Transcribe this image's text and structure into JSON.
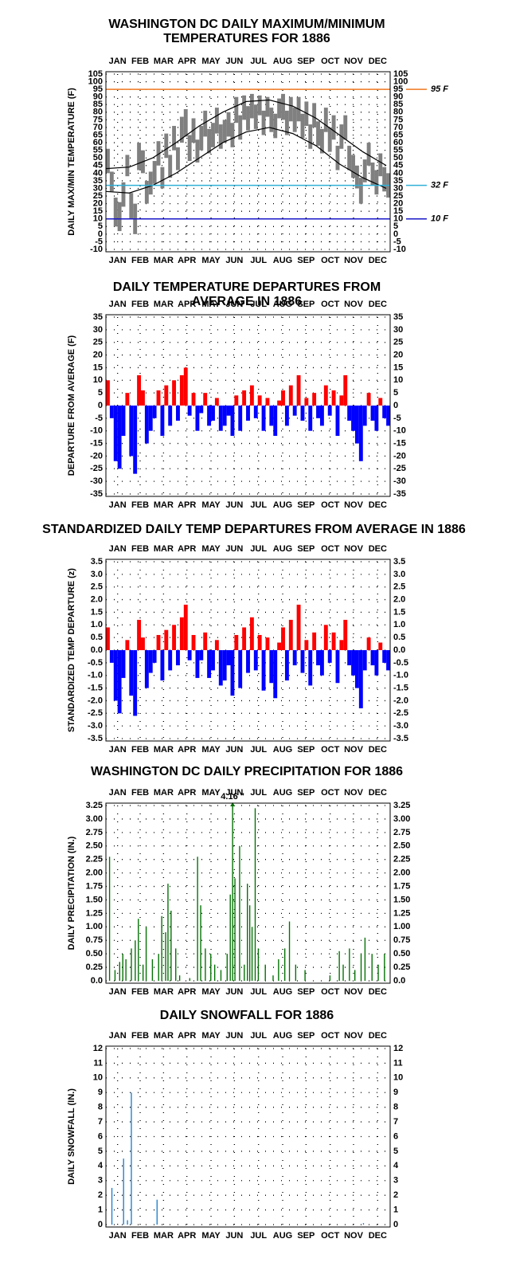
{
  "chart_data": [
    {
      "type": "range",
      "title": "WASHINGTON DC DAILY MAXIMUM/MINIMUM TEMPERATURES FOR 1886",
      "ylabel": "DAILY MAX/MIN TEMPERATURE (F)",
      "xlim": [
        1,
        366
      ],
      "xticks": [
        {
          "value": 16,
          "label": "JAN"
        },
        {
          "value": 45,
          "label": "FEB"
        },
        {
          "value": 75,
          "label": "MAR"
        },
        {
          "value": 105,
          "label": "APR"
        },
        {
          "value": 136,
          "label": "MAY"
        },
        {
          "value": 166,
          "label": "JUN"
        },
        {
          "value": 197,
          "label": "JUL"
        },
        {
          "value": 228,
          "label": "AUG"
        },
        {
          "value": 258,
          "label": "SEP"
        },
        {
          "value": 289,
          "label": "OCT"
        },
        {
          "value": 319,
          "label": "NOV"
        },
        {
          "value": 350,
          "label": "DEC"
        }
      ],
      "ylim": [
        -10,
        105
      ],
      "yticks": [
        105,
        100,
        95,
        90,
        85,
        80,
        75,
        70,
        65,
        60,
        55,
        50,
        45,
        40,
        35,
        30,
        25,
        20,
        15,
        10,
        5,
        0,
        -5,
        -10
      ],
      "grid": true,
      "x": [
        1,
        6,
        11,
        16,
        21,
        26,
        31,
        36,
        41,
        46,
        51,
        56,
        61,
        66,
        71,
        76,
        81,
        86,
        91,
        96,
        101,
        106,
        111,
        116,
        121,
        126,
        131,
        136,
        141,
        146,
        151,
        156,
        161,
        166,
        171,
        176,
        181,
        186,
        191,
        196,
        201,
        206,
        211,
        216,
        221,
        226,
        231,
        236,
        241,
        246,
        251,
        256,
        261,
        266,
        271,
        276,
        281,
        286,
        291,
        296,
        301,
        306,
        311,
        316,
        321,
        326,
        331,
        336,
        341,
        346,
        351,
        356,
        361
      ],
      "series": [
        {
          "color": "#808080",
          "values": [
            56,
            41,
            24,
            21,
            34,
            52,
            27,
            20,
            60,
            55,
            35,
            41,
            48,
            61,
            44,
            66,
            52,
            71,
            57,
            77,
            82,
            65,
            76,
            62,
            71,
            81,
            69,
            73,
            83,
            72,
            75,
            80,
            73,
            90,
            78,
            91,
            84,
            92,
            85,
            91,
            81,
            90,
            83,
            79,
            89,
            92,
            81,
            90,
            83,
            90,
            79,
            87,
            72,
            86,
            74,
            69,
            83,
            70,
            78,
            58,
            72,
            78,
            58,
            52,
            45,
            37,
            49,
            60,
            47,
            42,
            53,
            44,
            40
          ]
        },
        {
          "color": "#808080",
          "values": [
            40,
            28,
            5,
            2,
            18,
            38,
            10,
            0,
            42,
            40,
            20,
            26,
            33,
            45,
            30,
            50,
            37,
            55,
            42,
            60,
            64,
            48,
            60,
            47,
            55,
            64,
            53,
            57,
            66,
            56,
            60,
            64,
            57,
            73,
            62,
            75,
            68,
            76,
            69,
            78,
            65,
            77,
            67,
            63,
            76,
            75,
            65,
            74,
            67,
            74,
            63,
            71,
            56,
            70,
            58,
            53,
            67,
            54,
            62,
            42,
            56,
            62,
            42,
            37,
            30,
            20,
            34,
            45,
            32,
            26,
            38,
            28,
            24
          ]
        }
      ],
      "normal_x": [
        1,
        31,
        61,
        91,
        121,
        151,
        181,
        211,
        241,
        271,
        301,
        331,
        361
      ],
      "normals": [
        {
          "color": "#000000",
          "values": [
            43,
            44,
            50,
            60,
            71,
            80,
            87,
            88,
            84,
            76,
            65,
            54,
            45
          ]
        },
        {
          "color": "#000000",
          "values": [
            28,
            27,
            32,
            40,
            50,
            60,
            67,
            70,
            66,
            58,
            46,
            37,
            30
          ]
        }
      ],
      "reference_lines": [
        {
          "value": 95,
          "label": "95 F",
          "color": "#f07820"
        },
        {
          "value": 32,
          "label": "32 F",
          "color": "#30b0d8"
        },
        {
          "value": 10,
          "label": "10 F",
          "color": "#1818c8"
        }
      ]
    },
    {
      "type": "bar",
      "title": "DAILY TEMPERATURE DEPARTURES FROM AVERAGE IN 1886",
      "ylabel": "DEPARTURE FROM AVERAGE (F)",
      "xlim": [
        1,
        366
      ],
      "xticks": [
        {
          "value": 16,
          "label": "JAN"
        },
        {
          "value": 45,
          "label": "FEB"
        },
        {
          "value": 75,
          "label": "MAR"
        },
        {
          "value": 105,
          "label": "APR"
        },
        {
          "value": 136,
          "label": "MAY"
        },
        {
          "value": 166,
          "label": "JUN"
        },
        {
          "value": 197,
          "label": "JUL"
        },
        {
          "value": 228,
          "label": "AUG"
        },
        {
          "value": 258,
          "label": "SEP"
        },
        {
          "value": 289,
          "label": "OCT"
        },
        {
          "value": 319,
          "label": "NOV"
        },
        {
          "value": 350,
          "label": "DEC"
        }
      ],
      "ylim": [
        -35,
        35
      ],
      "yticks": [
        35,
        30,
        25,
        20,
        15,
        10,
        5,
        0,
        -5,
        -10,
        -15,
        -20,
        -25,
        -30,
        -35
      ],
      "grid": true,
      "bar_days": 5,
      "colors": {
        "positive": "#ff0000",
        "negative": "#0000ff"
      },
      "x": [
        1,
        6,
        11,
        16,
        21,
        26,
        31,
        36,
        41,
        46,
        51,
        56,
        61,
        66,
        71,
        76,
        81,
        86,
        91,
        96,
        101,
        106,
        111,
        116,
        121,
        126,
        131,
        136,
        141,
        146,
        151,
        156,
        161,
        166,
        171,
        176,
        181,
        186,
        191,
        196,
        201,
        206,
        211,
        216,
        221,
        226,
        231,
        236,
        241,
        246,
        251,
        256,
        261,
        266,
        271,
        276,
        281,
        286,
        291,
        296,
        301,
        306,
        311,
        316,
        321,
        326,
        331,
        336,
        341,
        346,
        351,
        356,
        361
      ],
      "series": [
        {
          "values": [
            10,
            -5,
            -22,
            -25,
            -12,
            5,
            -20,
            -27,
            12,
            6,
            -15,
            -10,
            -5,
            6,
            -12,
            8,
            -8,
            10,
            -6,
            12,
            15,
            -4,
            5,
            -10,
            -3,
            5,
            -8,
            -6,
            3,
            -10,
            -8,
            -4,
            -12,
            4,
            -10,
            6,
            -6,
            8,
            -5,
            4,
            -10,
            3,
            -8,
            -12,
            2,
            6,
            -8,
            8,
            -4,
            12,
            -6,
            3,
            -10,
            5,
            -5,
            -8,
            8,
            -4,
            6,
            -12,
            4,
            12,
            -6,
            -10,
            -15,
            -22,
            -8,
            5,
            -6,
            -10,
            3,
            -5,
            -8
          ]
        }
      ]
    },
    {
      "type": "bar",
      "title": "STANDARDIZED DAILY TEMP DEPARTURES FROM AVERAGE IN 1886",
      "ylabel": "STANDARDIZED TEMP DEPARTURE (z)",
      "xlim": [
        1,
        366
      ],
      "xticks": [
        {
          "value": 16,
          "label": "JAN"
        },
        {
          "value": 45,
          "label": "FEB"
        },
        {
          "value": 75,
          "label": "MAR"
        },
        {
          "value": 105,
          "label": "APR"
        },
        {
          "value": 136,
          "label": "MAY"
        },
        {
          "value": 166,
          "label": "JUN"
        },
        {
          "value": 197,
          "label": "JUL"
        },
        {
          "value": 228,
          "label": "AUG"
        },
        {
          "value": 258,
          "label": "SEP"
        },
        {
          "value": 289,
          "label": "OCT"
        },
        {
          "value": 319,
          "label": "NOV"
        },
        {
          "value": 350,
          "label": "DEC"
        }
      ],
      "ylim": [
        -3.5,
        3.5
      ],
      "yticks": [
        3.5,
        {
          "value": 3,
          "label": "3.0"
        },
        2.5,
        {
          "value": 2,
          "label": "2.0"
        },
        1.5,
        {
          "value": 1,
          "label": "1.0"
        },
        0.5,
        {
          "value": 0,
          "label": "0.0"
        },
        -0.5,
        {
          "value": -1,
          "label": "-1.0"
        },
        -1.5,
        {
          "value": -2,
          "label": "-2.0"
        },
        -2.5,
        {
          "value": -3,
          "label": "-3.0"
        },
        -3.5
      ],
      "grid": true,
      "bar_days": 5,
      "colors": {
        "positive": "#ff0000",
        "negative": "#0000ff"
      },
      "x": [
        1,
        6,
        11,
        16,
        21,
        26,
        31,
        36,
        41,
        46,
        51,
        56,
        61,
        66,
        71,
        76,
        81,
        86,
        91,
        96,
        101,
        106,
        111,
        116,
        121,
        126,
        131,
        136,
        141,
        146,
        151,
        156,
        161,
        166,
        171,
        176,
        181,
        186,
        191,
        196,
        201,
        206,
        211,
        216,
        221,
        226,
        231,
        236,
        241,
        246,
        251,
        256,
        261,
        266,
        271,
        276,
        281,
        286,
        291,
        296,
        301,
        306,
        311,
        316,
        321,
        326,
        331,
        336,
        341,
        346,
        351,
        356,
        361
      ],
      "series": [
        {
          "values": [
            0.9,
            -0.5,
            -2.0,
            -2.5,
            -1.1,
            0.4,
            -1.8,
            -2.6,
            1.2,
            0.5,
            -1.5,
            -0.9,
            -0.5,
            0.6,
            -1.2,
            0.8,
            -0.8,
            1.0,
            -0.6,
            1.3,
            1.8,
            -0.4,
            0.6,
            -1.1,
            -0.4,
            0.7,
            -1.1,
            -0.8,
            0.4,
            -1.4,
            -1.2,
            -0.6,
            -1.8,
            0.6,
            -1.5,
            0.9,
            -0.9,
            1.3,
            -0.8,
            0.6,
            -1.6,
            0.5,
            -1.3,
            -1.9,
            0.3,
            0.9,
            -1.2,
            1.2,
            -0.6,
            1.8,
            -0.9,
            0.4,
            -1.4,
            0.7,
            -0.6,
            -1.0,
            1.0,
            -0.5,
            0.7,
            -1.3,
            0.4,
            1.2,
            -0.6,
            -1.0,
            -1.5,
            -2.3,
            -0.8,
            0.5,
            -0.6,
            -1.0,
            0.3,
            -0.5,
            -0.8
          ]
        }
      ]
    },
    {
      "type": "bar",
      "title": "WASHINGTON DC DAILY PRECIPITATION FOR 1886",
      "ylabel": "DAILY PRECIPITATION (IN.)",
      "xlim": [
        1,
        366
      ],
      "xticks": [
        {
          "value": 16,
          "label": "JAN"
        },
        {
          "value": 45,
          "label": "FEB"
        },
        {
          "value": 75,
          "label": "MAR"
        },
        {
          "value": 105,
          "label": "APR"
        },
        {
          "value": 136,
          "label": "MAY"
        },
        {
          "value": 166,
          "label": "JUN"
        },
        {
          "value": 197,
          "label": "JUL"
        },
        {
          "value": 228,
          "label": "AUG"
        },
        {
          "value": 258,
          "label": "SEP"
        },
        {
          "value": 289,
          "label": "OCT"
        },
        {
          "value": 319,
          "label": "NOV"
        },
        {
          "value": 350,
          "label": "DEC"
        }
      ],
      "ylim": [
        0,
        3.25
      ],
      "yticks": [
        3.25,
        {
          "value": 3,
          "label": "3.00"
        },
        2.75,
        {
          "value": 2.5,
          "label": "2.50"
        },
        2.25,
        {
          "value": 2,
          "label": "2.00"
        },
        1.75,
        {
          "value": 1.5,
          "label": "1.50"
        },
        1.25,
        {
          "value": 1,
          "label": "1.00"
        },
        0.75,
        {
          "value": 0.5,
          "label": "0.50"
        },
        0.25,
        {
          "value": 0,
          "label": "0.0"
        }
      ],
      "grid": true,
      "bar_days": 1.4,
      "x": [
        5,
        12,
        18,
        22,
        26,
        33,
        38,
        42,
        48,
        52,
        60,
        68,
        72,
        77,
        80,
        84,
        90,
        95,
        108,
        118,
        122,
        128,
        135,
        140,
        148,
        156,
        160,
        163,
        166,
        172,
        178,
        182,
        185,
        188,
        192,
        196,
        205,
        215,
        222,
        230,
        236,
        244,
        256,
        288,
        300,
        305,
        313,
        320,
        328,
        333,
        342,
        350,
        358
      ],
      "series": [
        {
          "color": "#007000",
          "values": [
            2.3,
            0.2,
            0.35,
            0.5,
            0.4,
            0.6,
            0.75,
            1.15,
            0.3,
            1.0,
            0.4,
            0.5,
            1.2,
            0.9,
            1.8,
            1.3,
            0.6,
            0.1,
            0.05,
            2.3,
            1.4,
            0.6,
            0.5,
            0.3,
            0.2,
            0.5,
            1.6,
            4.16,
            1.9,
            2.5,
            0.3,
            1.8,
            1.4,
            1.0,
            3.2,
            0.6,
            0.3,
            0.1,
            0.4,
            0.6,
            1.1,
            0.3,
            0.2,
            0.1,
            0.55,
            0.3,
            0.6,
            0.2,
            0.5,
            0.8,
            0.5,
            0.3,
            0.5
          ],
          "value_labels": [
            null,
            null,
            null,
            null,
            null,
            null,
            null,
            null,
            null,
            null,
            null,
            null,
            null,
            null,
            null,
            null,
            null,
            null,
            null,
            null,
            null,
            null,
            null,
            null,
            null,
            null,
            null,
            "4.16 \"",
            null,
            null,
            null,
            null,
            null,
            null,
            null,
            null,
            null,
            null,
            null,
            null,
            null,
            null,
            null,
            null,
            null,
            null,
            null,
            null,
            null,
            null,
            null,
            null,
            null
          ]
        }
      ]
    },
    {
      "type": "bar",
      "title": "DAILY SNOWFALL FOR 1886",
      "ylabel": "DAILY SNOWFALL (IN.)",
      "xlim": [
        1,
        366
      ],
      "xticks": [
        {
          "value": 16,
          "label": "JAN"
        },
        {
          "value": 45,
          "label": "FEB"
        },
        {
          "value": 75,
          "label": "MAR"
        },
        {
          "value": 105,
          "label": "APR"
        },
        {
          "value": 136,
          "label": "MAY"
        },
        {
          "value": 166,
          "label": "JUN"
        },
        {
          "value": 197,
          "label": "JUL"
        },
        {
          "value": 228,
          "label": "AUG"
        },
        {
          "value": 258,
          "label": "SEP"
        },
        {
          "value": 289,
          "label": "OCT"
        },
        {
          "value": 319,
          "label": "NOV"
        },
        {
          "value": 350,
          "label": "DEC"
        }
      ],
      "ylim": [
        0,
        12
      ],
      "yticks": [
        12,
        11,
        10,
        9,
        8,
        7,
        6,
        5,
        4,
        3,
        2,
        1,
        0
      ],
      "grid": true,
      "bar_days": 1.4,
      "x": [
        8,
        23,
        28,
        33,
        66,
        331
      ],
      "series": [
        {
          "color": "#2080d0",
          "values": [
            2.5,
            4.5,
            0.3,
            9.0,
            1.7,
            0.1
          ]
        }
      ]
    }
  ]
}
